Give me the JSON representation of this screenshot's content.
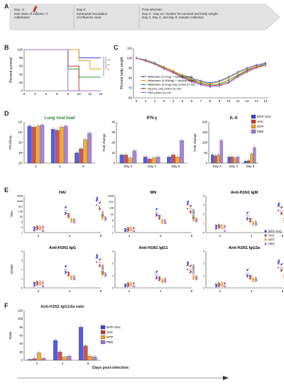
{
  "panel_letters": {
    "A": "A",
    "B": "B",
    "C": "C",
    "D": "D",
    "E": "E",
    "F": "F"
  },
  "timeline": {
    "day_minus3": "Day -3:",
    "day_minus3_desc1": "One dose of vaccine +/-",
    "day_minus3_desc2": "miltefosine",
    "day0": "Day 0:",
    "day0_desc": "Intranasal inoculation",
    "day0_desc2": "of influenza virus",
    "post": "Post-infection:",
    "post_line1": "Day 0 - Day 14: monitor for survival and body weight",
    "post_line2": "Day 2, Day 4, and day 6: sample collection"
  },
  "colors": {
    "mtf_vac": "#3a3fd8",
    "vac": "#c0392b",
    "mtf": "#e8a020",
    "pbs": "#9b6fd0",
    "green": "#2e9e3e"
  },
  "chart_data": [
    {
      "type": "line",
      "id": "B",
      "ylabel": "Percent survival",
      "x": [
        0,
        2,
        4,
        6,
        8,
        10,
        12,
        14
      ],
      "yticks": [
        "0",
        "20",
        "40",
        "60",
        "80",
        "100"
      ],
      "xticks": [
        "0",
        "2",
        "4",
        "6",
        "8",
        "10",
        "12",
        "14"
      ],
      "sig": [
        "***",
        "**",
        "**"
      ],
      "series": [
        {
          "color": "#3a3fd8",
          "values": [
            100,
            100,
            100,
            100,
            100,
            80,
            80,
            80
          ]
        },
        {
          "color": "#e8a020",
          "values": [
            100,
            100,
            100,
            100,
            100,
            73,
            53,
            53
          ]
        },
        {
          "color": "#2e9e3e",
          "values": [
            100,
            100,
            100,
            100,
            53,
            33,
            33,
            33
          ]
        },
        {
          "color": "#c0392b",
          "values": [
            100,
            100,
            100,
            100,
            60,
            0,
            0,
            0
          ]
        },
        {
          "color": "#9b6fd0",
          "values": [
            100,
            100,
            100,
            100,
            0,
            0,
            0,
            0
          ]
        }
      ]
    },
    {
      "type": "line",
      "id": "C",
      "ylabel": "Percent body weight",
      "x": [
        0,
        1,
        2,
        3,
        4,
        5,
        6,
        7,
        8,
        9,
        10,
        11,
        12,
        13,
        14
      ],
      "xticks": [
        "0",
        "1",
        "2",
        "3",
        "4",
        "5",
        "6",
        "7",
        "8",
        "9",
        "10",
        "11",
        "12",
        "13",
        "14"
      ],
      "yticks": [
        "60",
        "70",
        "80",
        "90",
        "100",
        "110"
      ],
      "legend": [
        "Miltefosine (0.2mg) + Vaccine (n=15)",
        "Miltefosine (0.008mg) + Vaccine (n=15)",
        "Miltefosine (0.2mg) only control (n=15)",
        "Vaccine only control (n=15)",
        "PBS control (n=15)"
      ],
      "series": [
        {
          "color": "#3a3fd8",
          "values": [
            100,
            98,
            95,
            91,
            87,
            83,
            80,
            77,
            75,
            77,
            81,
            86,
            90,
            93,
            95
          ]
        },
        {
          "color": "#e8a020",
          "values": [
            100,
            98,
            95,
            91,
            87,
            83,
            79,
            76,
            74,
            76,
            80,
            85,
            89,
            92,
            94
          ]
        },
        {
          "color": "#2e9e3e",
          "values": [
            100,
            98,
            95,
            90,
            86,
            82,
            78,
            75,
            73,
            74,
            78,
            83,
            88,
            91,
            94
          ]
        },
        {
          "color": "#c0392b",
          "values": [
            100,
            98,
            94,
            90,
            86,
            81,
            77,
            74,
            72,
            73,
            76,
            82,
            87,
            91,
            93
          ]
        },
        {
          "color": "#9b6fd0",
          "values": [
            100,
            97,
            94,
            89,
            85,
            80,
            76,
            73,
            71,
            72,
            75,
            81,
            86,
            90,
            93
          ]
        }
      ]
    },
    {
      "type": "bar",
      "id": "D1",
      "title": "Lung viral load",
      "ylabel": "PFU/lung",
      "categories": [
        "2",
        "4",
        "6"
      ],
      "yticks": [
        "10¹",
        "10²",
        "10³",
        "10⁴",
        "10⁵"
      ],
      "series": [
        {
          "color": "#3a3fd8",
          "values": [
            4.6,
            4.3,
            2.0
          ]
        },
        {
          "color": "#c0392b",
          "values": [
            4.5,
            4.2,
            2.4
          ]
        },
        {
          "color": "#e8a020",
          "values": [
            4.6,
            4.5,
            3.3
          ]
        },
        {
          "color": "#9b6fd0",
          "values": [
            4.7,
            4.6,
            3.9
          ]
        }
      ]
    },
    {
      "type": "bar",
      "id": "D2",
      "title": "IFN-γ",
      "ylabel": "Fold change",
      "categories": [
        "Day 2",
        "Day 4",
        "Day 6"
      ],
      "yticks": [
        "0",
        "10",
        "20",
        "30",
        "40"
      ],
      "series": [
        {
          "color": "#3a3fd8",
          "values": [
            8,
            6,
            6
          ]
        },
        {
          "color": "#c0392b",
          "values": [
            8,
            4,
            8
          ]
        },
        {
          "color": "#e8a020",
          "values": [
            5,
            5,
            6
          ]
        },
        {
          "color": "#9b6fd0",
          "values": [
            12,
            6,
            22
          ]
        }
      ]
    },
    {
      "type": "bar",
      "id": "D3",
      "title": "IL-6",
      "ylabel": "Fold change",
      "categories": [
        "Day 2",
        "Day 4",
        "Day 6"
      ],
      "yticks": [
        "0",
        "50",
        "100",
        "150",
        "200"
      ],
      "series": [
        {
          "color": "#3a3fd8",
          "values": [
            40,
            30,
            10
          ]
        },
        {
          "color": "#c0392b",
          "values": [
            35,
            30,
            12
          ]
        },
        {
          "color": "#e8a020",
          "values": [
            40,
            25,
            45
          ]
        },
        {
          "color": "#9b6fd0",
          "values": [
            110,
            30,
            75
          ]
        }
      ]
    },
    {
      "type": "bar",
      "id": "F",
      "title": "Anti-H1N1 IgG1/2a ratio",
      "ylabel": "Ratio",
      "categories": [
        "2",
        "4",
        "6"
      ],
      "yticks": [
        "0",
        "20",
        "40",
        "60",
        "80",
        "100",
        "120"
      ],
      "series": [
        {
          "color": "#3a3fd8",
          "values": [
            2,
            48,
            80
          ]
        },
        {
          "color": "#c0392b",
          "values": [
            4,
            20,
            35
          ]
        },
        {
          "color": "#e8a020",
          "values": [
            18,
            8,
            10
          ]
        },
        {
          "color": "#9b6fd0",
          "values": [
            5,
            10,
            8
          ]
        }
      ]
    }
  ],
  "d_legend": [
    "MTF-VAC",
    "VAC",
    "MTF",
    "PBS"
  ],
  "e_legend": [
    "MTF-VAC",
    "VAC",
    "MTF",
    "PBS"
  ],
  "f_legend": [
    "MTF-VAC",
    "VAC",
    "MTF",
    "PBS"
  ],
  "e_panels": [
    {
      "title": "HAI",
      "ylabel": "Titer",
      "yticks": [
        "1",
        "2",
        "8",
        "32",
        "128",
        "512",
        "2048",
        "4096"
      ]
    },
    {
      "title": "MN",
      "ylabel": "Titer",
      "yticks": [
        "1",
        "2",
        "8",
        "32",
        "128",
        "512",
        "2048"
      ]
    },
    {
      "title": "Anti-H1N1 IgM",
      "ylabel": "OD450",
      "yticks": [
        "0",
        "1",
        "2",
        "3",
        "4"
      ]
    },
    {
      "title": "Anti-H1N1 IgG",
      "ylabel": "OD450",
      "yticks": [
        "0",
        "1",
        "2",
        "3",
        "4"
      ]
    },
    {
      "title": "Anti-H1N1 IgG1",
      "ylabel": "OD450",
      "yticks": [
        "0",
        "1",
        "2",
        "3"
      ]
    },
    {
      "title": "Anti-H1N1 IgG2a",
      "ylabel": "OD450",
      "yticks": [
        "0",
        "1",
        "2",
        "3"
      ]
    }
  ],
  "e_xticks": [
    "2",
    "4",
    "6"
  ],
  "days_post_infection": "Days post-infection"
}
